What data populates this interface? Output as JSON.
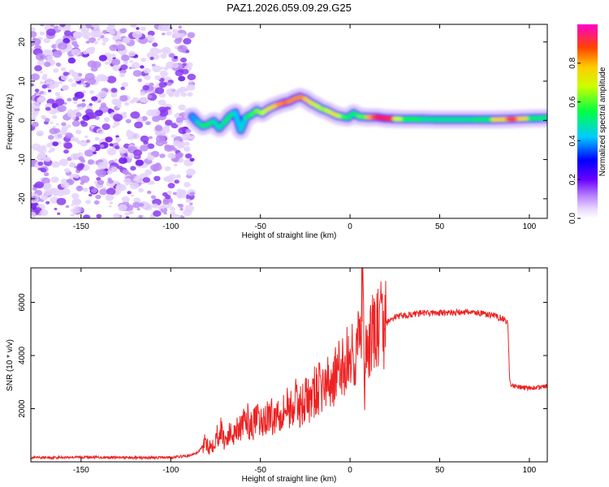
{
  "figure": {
    "title": "PAZ1.2026.059.09.29.G25"
  },
  "chart_data": [
    {
      "type": "heatmap",
      "title": "PAZ1.2026.059.09.29.G25",
      "xlabel": "Height of straight line (km)",
      "ylabel": "Frequency (Hz)",
      "xlim": [
        -178,
        110
      ],
      "ylim": [
        -25,
        24.5
      ],
      "xticks": [
        -150,
        -100,
        -50,
        0,
        50,
        100
      ],
      "yticks": [
        -20,
        -10,
        0,
        10,
        20
      ],
      "noise_region_x": [
        -178,
        -88
      ],
      "ridge": {
        "x": [
          -88,
          -85,
          -82,
          -79,
          -76,
          -73,
          -70,
          -67,
          -64,
          -61,
          -58,
          -55,
          -52,
          -49,
          -46,
          -43,
          -40,
          -37,
          -34,
          -31,
          -28,
          -25,
          -22,
          -19,
          -16,
          -13,
          -10,
          -7,
          -4,
          -1,
          2,
          5,
          10,
          15,
          20,
          25,
          30,
          40,
          50,
          60,
          70,
          80,
          90,
          100,
          110
        ],
        "y": [
          1.0,
          -0.5,
          -1.5,
          -1.0,
          -0.2,
          -2.0,
          -0.5,
          1.2,
          2.0,
          -2.5,
          0.8,
          1.5,
          2.5,
          1.8,
          2.8,
          3.5,
          4.0,
          4.5,
          4.8,
          5.5,
          6.0,
          5.5,
          4.5,
          3.8,
          3.0,
          2.5,
          1.8,
          1.2,
          0.9,
          0.7,
          1.8,
          1.0,
          0.8,
          0.8,
          0.5,
          0.4,
          0.3,
          0.3,
          0.2,
          0.2,
          0.2,
          0.2,
          0.3,
          0.5,
          0.6
        ],
        "amplitude": [
          0.35,
          0.45,
          0.5,
          0.55,
          0.5,
          0.45,
          0.5,
          0.55,
          0.45,
          0.4,
          0.5,
          0.55,
          0.6,
          0.65,
          0.7,
          0.75,
          0.8,
          0.85,
          0.85,
          0.8,
          0.85,
          0.8,
          0.75,
          0.7,
          0.65,
          0.65,
          0.7,
          0.75,
          0.6,
          0.55,
          0.5,
          0.55,
          0.65,
          0.95,
          0.98,
          0.75,
          0.6,
          0.5,
          0.5,
          0.5,
          0.5,
          0.55,
          0.95,
          0.55,
          0.5
        ]
      },
      "colorbar": {
        "label": "Normalized spectral amplitude",
        "range": [
          0.0,
          1.0
        ],
        "ticks": [
          0.0,
          0.2,
          0.4,
          0.6,
          0.8
        ],
        "tick_labels": [
          "0.0",
          "0.2",
          "0.4",
          "0.6",
          "0.8"
        ]
      }
    },
    {
      "type": "line",
      "xlabel": "Height of straight line (km)",
      "ylabel": "SNR (10 * v/v)",
      "xlim": [
        -178,
        110
      ],
      "ylim": [
        0,
        7300
      ],
      "xticks": [
        -150,
        -100,
        -50,
        0,
        50,
        100
      ],
      "yticks": [
        2000,
        4000,
        6000
      ],
      "series": [
        {
          "name": "SNR",
          "color": "#ee2222",
          "x": [
            -178,
            -150,
            -120,
            -100,
            -90,
            -85,
            -82,
            -80,
            -78,
            -75,
            -72,
            -70,
            -68,
            -65,
            -62,
            -60,
            -58,
            -55,
            -52,
            -50,
            -48,
            -45,
            -42,
            -40,
            -38,
            -35,
            -32,
            -30,
            -28,
            -25,
            -22,
            -20,
            -18,
            -15,
            -12,
            -10,
            -8,
            -5,
            -3,
            -1,
            1,
            3,
            5,
            6,
            7,
            8,
            9,
            10,
            12,
            15,
            20,
            25,
            30,
            35,
            40,
            50,
            60,
            65,
            70,
            75,
            80,
            85,
            88,
            89,
            90,
            95,
            100,
            105,
            110
          ],
          "y": [
            150,
            180,
            150,
            170,
            220,
            350,
            600,
            750,
            550,
            900,
            1200,
            800,
            1000,
            1100,
            1400,
            1250,
            1700,
            1300,
            1600,
            1400,
            1550,
            1800,
            1600,
            2000,
            1850,
            2100,
            2000,
            2300,
            2050,
            2400,
            2250,
            2600,
            2700,
            2850,
            2900,
            3100,
            3300,
            3400,
            3700,
            3850,
            4000,
            4200,
            4400,
            4600,
            7300,
            2400,
            3900,
            4300,
            4700,
            5000,
            5200,
            5450,
            5500,
            5550,
            5600,
            5600,
            5620,
            5650,
            5620,
            5550,
            5500,
            5400,
            5250,
            3100,
            2850,
            2800,
            2780,
            2800,
            2850
          ]
        }
      ]
    }
  ]
}
